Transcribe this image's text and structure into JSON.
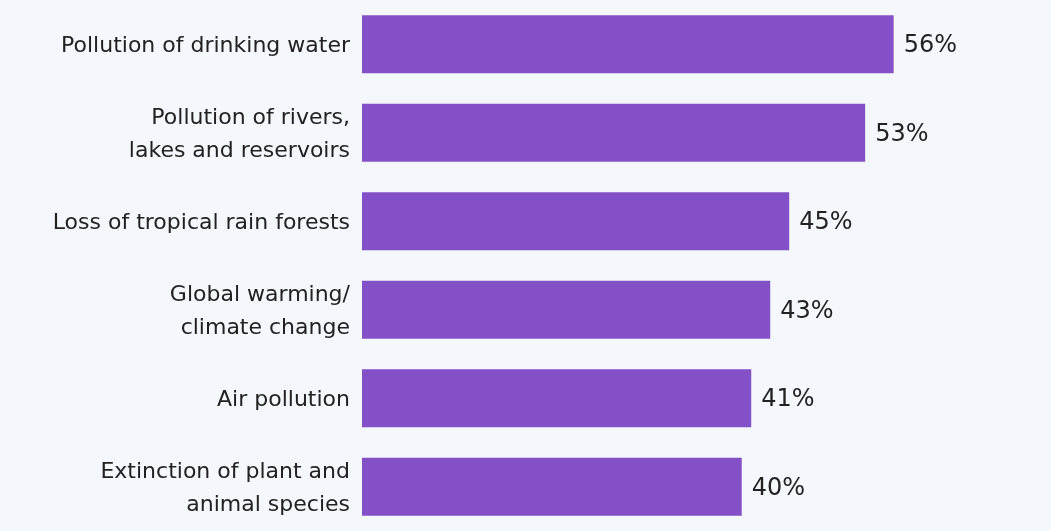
{
  "chart_data": {
    "type": "bar",
    "orientation": "horizontal",
    "categories": [
      "Pollution of drinking water",
      "Pollution of rivers,\nlakes and reservoirs",
      "Loss of tropical rain forests",
      "Global warming/\nclimate change",
      "Air pollution",
      "Extinction of plant and\nanimal species"
    ],
    "values": [
      56,
      53,
      45,
      43,
      41,
      40
    ],
    "value_labels": [
      "56%",
      "53%",
      "45%",
      "43%",
      "41%",
      "40%"
    ],
    "color": "#8450c8"
  }
}
